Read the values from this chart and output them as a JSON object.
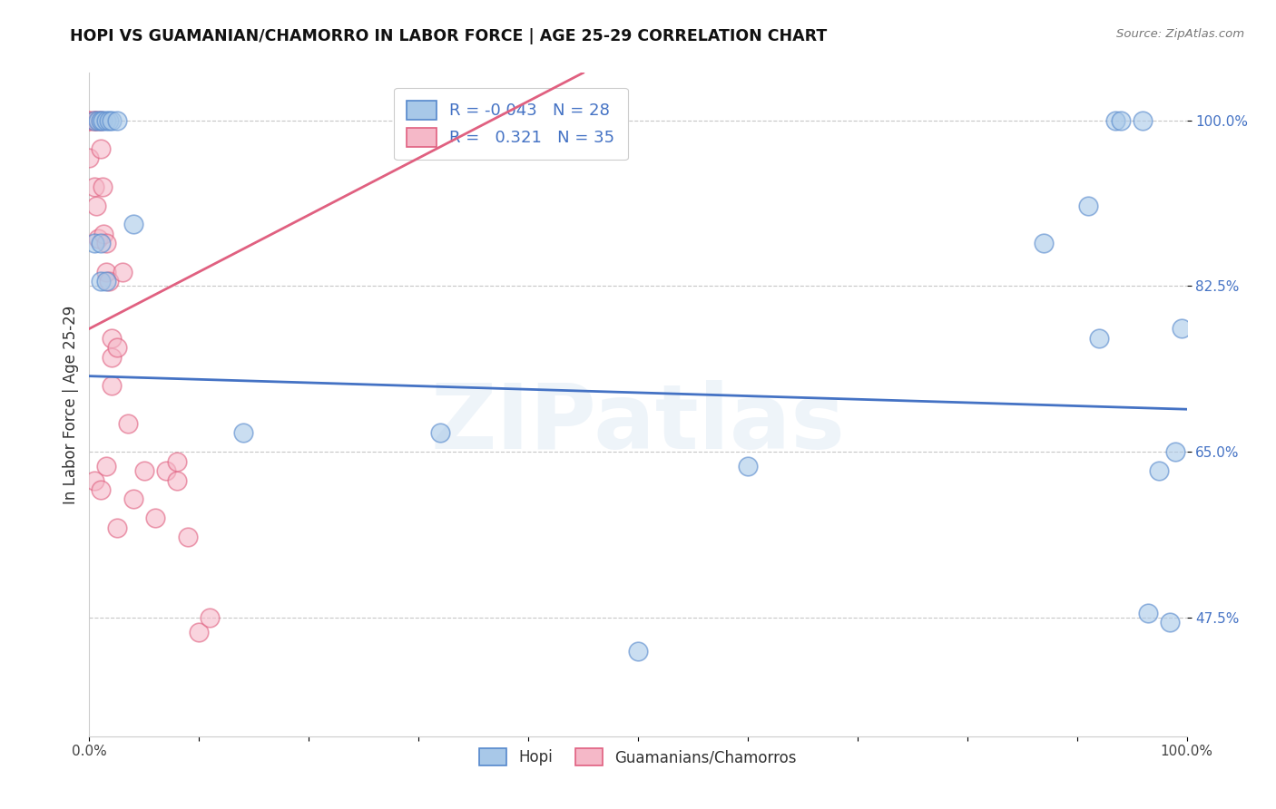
{
  "title": "HOPI VS GUAMANIAN/CHAMORRO IN LABOR FORCE | AGE 25-29 CORRELATION CHART",
  "source": "Source: ZipAtlas.com",
  "ylabel": "In Labor Force | Age 25-29",
  "watermark": "ZIPatlas",
  "hopi_R": "-0.043",
  "hopi_N": "28",
  "guam_R": "0.321",
  "guam_N": "35",
  "hopi_color": "#a8c8e8",
  "guam_color": "#f5b8c8",
  "hopi_edge_color": "#5588cc",
  "guam_edge_color": "#e06080",
  "hopi_line_color": "#4472c4",
  "guam_line_color": "#e06080",
  "legend_label_hopi": "Hopi",
  "legend_label_guam": "Guamanians/Chamorros",
  "ytick_labels": [
    "47.5%",
    "65.0%",
    "82.5%",
    "100.0%"
  ],
  "ytick_values": [
    0.475,
    0.65,
    0.825,
    1.0
  ],
  "xlim": [
    0.0,
    1.0
  ],
  "ylim": [
    0.35,
    1.05
  ],
  "hopi_x": [
    0.005,
    0.008,
    0.01,
    0.012,
    0.015,
    0.018,
    0.02,
    0.025,
    0.005,
    0.01,
    0.01,
    0.015,
    0.04,
    0.14,
    0.32,
    0.5,
    0.6,
    0.87,
    0.91,
    0.92,
    0.935,
    0.94,
    0.96,
    0.965,
    0.975,
    0.985,
    0.99,
    0.995
  ],
  "hopi_y": [
    1.0,
    1.0,
    1.0,
    1.0,
    1.0,
    1.0,
    1.0,
    1.0,
    0.87,
    0.87,
    0.83,
    0.83,
    0.89,
    0.67,
    0.67,
    0.44,
    0.635,
    0.87,
    0.91,
    0.77,
    1.0,
    1.0,
    1.0,
    0.48,
    0.63,
    0.47,
    0.65,
    0.78
  ],
  "guam_x": [
    0.0,
    0.0,
    0.0,
    0.005,
    0.005,
    0.005,
    0.006,
    0.007,
    0.008,
    0.01,
    0.01,
    0.012,
    0.013,
    0.015,
    0.015,
    0.018,
    0.02,
    0.02,
    0.025,
    0.03,
    0.035,
    0.04,
    0.05,
    0.06,
    0.07,
    0.08,
    0.08,
    0.09,
    0.1,
    0.11,
    0.005,
    0.01,
    0.015,
    0.02,
    0.025
  ],
  "guam_y": [
    1.0,
    1.0,
    0.96,
    1.0,
    1.0,
    0.93,
    0.91,
    1.0,
    0.875,
    1.0,
    0.97,
    0.93,
    0.88,
    0.87,
    0.84,
    0.83,
    0.77,
    0.75,
    0.76,
    0.84,
    0.68,
    0.6,
    0.63,
    0.58,
    0.63,
    0.62,
    0.64,
    0.56,
    0.46,
    0.475,
    0.62,
    0.61,
    0.635,
    0.72,
    0.57
  ],
  "hopi_line_x0": 0.0,
  "hopi_line_x1": 1.0,
  "hopi_line_y0": 0.73,
  "hopi_line_y1": 0.695,
  "guam_line_x0": 0.0,
  "guam_line_x1": 0.45,
  "guam_line_y0": 0.78,
  "guam_line_y1": 1.05
}
